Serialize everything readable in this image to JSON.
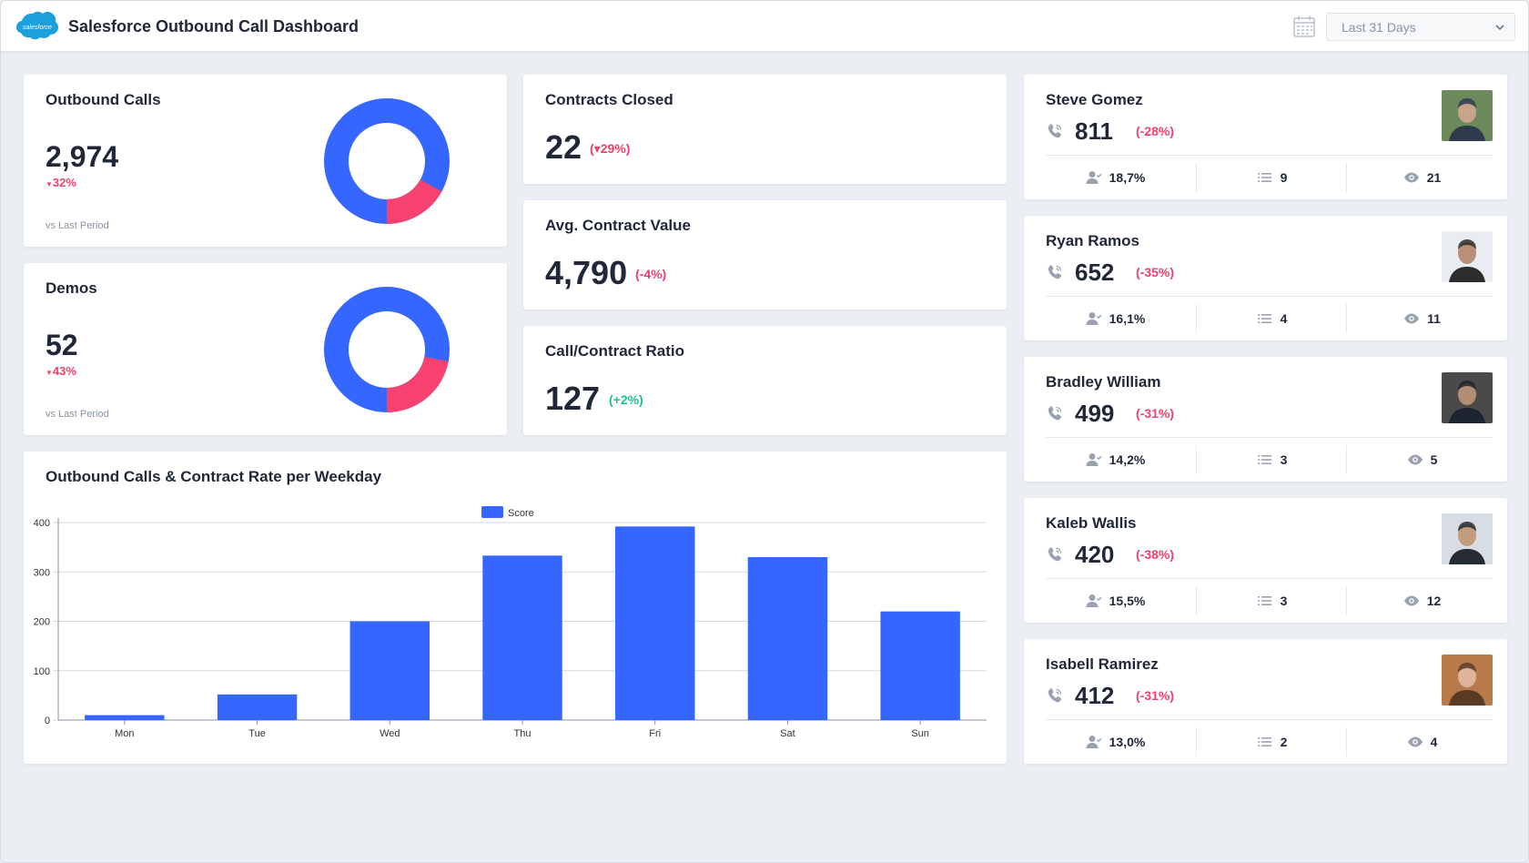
{
  "header": {
    "title": "Salesforce Outbound Call Dashboard",
    "logo_text": "salesforce",
    "date_range": "Last 31 Days"
  },
  "colors": {
    "accent_blue": "#3566ff",
    "negative": "#ef3f6a",
    "positive": "#1cc388",
    "background": "#ebeef3"
  },
  "kpis": {
    "outbound_calls": {
      "title": "Outbound Calls",
      "value": "2,974",
      "delta": "32%",
      "note": "vs Last Period",
      "donut_fraction": 0.17
    },
    "demos": {
      "title": "Demos",
      "value": "52",
      "delta": "43%",
      "note": "vs Last Period",
      "donut_fraction": 0.22
    },
    "contracts_closed": {
      "title": "Contracts Closed",
      "value": "22",
      "delta": "(▾29%)"
    },
    "avg_contract_value": {
      "title": "Avg. Contract Value",
      "value": "4,790",
      "delta": "(-4%)"
    },
    "call_contract_ratio": {
      "title": "Call/Contract Ratio",
      "value": "127",
      "delta": "(+2%)"
    }
  },
  "weekday_chart": {
    "title": "Outbound Calls & Contract Rate per Weekday"
  },
  "chart_data": {
    "type": "bar",
    "categories": [
      "Mon",
      "Tue",
      "Wed",
      "Thu",
      "Fri",
      "Sat",
      "Sun"
    ],
    "series": [
      {
        "name": "Score",
        "values": [
          10,
          52,
          200,
          333,
          392,
          330,
          220
        ]
      }
    ],
    "title": "Outbound Calls & Contract Rate per Weekday",
    "ylim": [
      0,
      400
    ],
    "yticks": [
      0,
      100,
      200,
      300,
      400
    ],
    "grid": true,
    "legend": "top-center"
  },
  "reps": [
    {
      "name": "Steve Gomez",
      "calls": "811",
      "delta": "(-28%)",
      "rate": "18,7%",
      "tasks": "9",
      "views": "21"
    },
    {
      "name": "Ryan Ramos",
      "calls": "652",
      "delta": "(-35%)",
      "rate": "16,1%",
      "tasks": "4",
      "views": "11"
    },
    {
      "name": "Bradley William",
      "calls": "499",
      "delta": "(-31%)",
      "rate": "14,2%",
      "tasks": "3",
      "views": "5"
    },
    {
      "name": "Kaleb Wallis",
      "calls": "420",
      "delta": "(-38%)",
      "rate": "15,5%",
      "tasks": "3",
      "views": "12"
    },
    {
      "name": "Isabell Ramirez",
      "calls": "412",
      "delta": "(-31%)",
      "rate": "13,0%",
      "tasks": "2",
      "views": "4"
    }
  ]
}
